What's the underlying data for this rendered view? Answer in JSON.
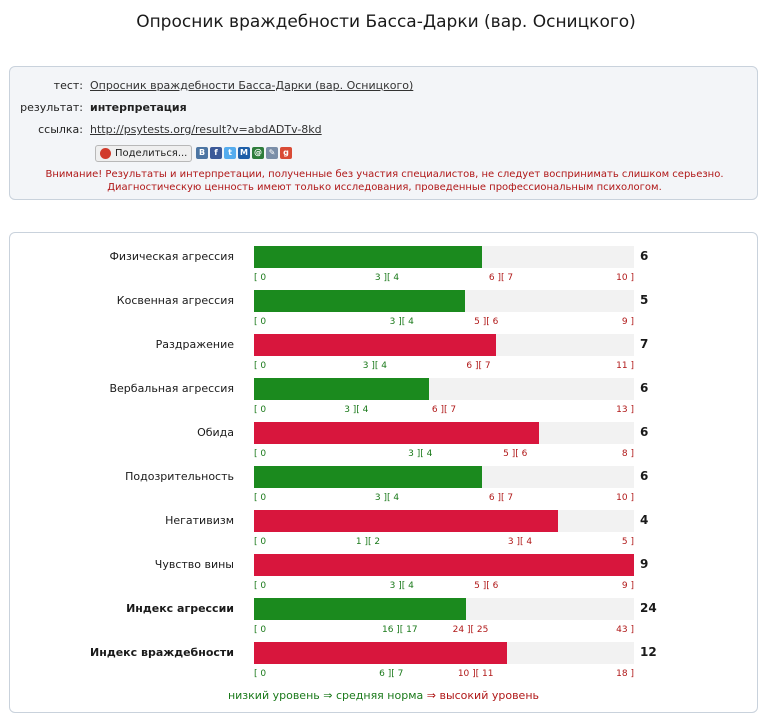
{
  "page": {
    "title": "Опросник враждебности Басса-Дарки (вар. Осницкого)"
  },
  "info": {
    "test_label": "тест:",
    "test_value": "Опросник враждебности Басса-Дарки (вар. Осницкого)",
    "result_label": "результат:",
    "result_value": "интерпретация",
    "link_label": "ссылка:",
    "link_value": "http://psytests.org/result?v=abdADTv-8kd",
    "share_label": "Поделиться...",
    "social": [
      {
        "name": "vk-icon",
        "glyph": "В",
        "color": "#4c75a3"
      },
      {
        "name": "facebook-icon",
        "glyph": "f",
        "color": "#3b5998"
      },
      {
        "name": "twitter-icon",
        "glyph": "t",
        "color": "#55acee"
      },
      {
        "name": "mailru-icon",
        "glyph": "M",
        "color": "#1f5fa8"
      },
      {
        "name": "odnoklassniki-icon",
        "glyph": "@",
        "color": "#2f7d3c"
      },
      {
        "name": "livejournal-icon",
        "glyph": "✎",
        "color": "#7a8ea8"
      },
      {
        "name": "googleplus-icon",
        "glyph": "g",
        "color": "#d94b36"
      }
    ],
    "warning_line1": "Внимание! Результаты и интерпретации, полученные без участия специалистов, не следует воспринимать слишком серьезно.",
    "warning_line2": "Диагностическую ценность имеют только исследования, проведенные профессиональным психологом."
  },
  "colors": {
    "low": "#1b8a1e",
    "norm": "#1b8a1e",
    "high": "#d8163d",
    "track": "#f2f2f2",
    "high_text": "#b01818",
    "low_text": "#1b7a1b"
  },
  "chart_data": {
    "type": "bar",
    "orientation": "horizontal",
    "scales": [
      {
        "label": "Физическая агрессия",
        "value": 6,
        "max": 10,
        "low": [
          0,
          3
        ],
        "norm": [
          4,
          6
        ],
        "high": [
          7,
          10
        ],
        "level": "norm",
        "bold": false
      },
      {
        "label": "Косвенная агрессия",
        "value": 5,
        "max": 9,
        "low": [
          0,
          3
        ],
        "norm": [
          4,
          5
        ],
        "high": [
          6,
          9
        ],
        "level": "norm",
        "bold": false
      },
      {
        "label": "Раздражение",
        "value": 7,
        "max": 11,
        "low": [
          0,
          3
        ],
        "norm": [
          4,
          6
        ],
        "high": [
          7,
          11
        ],
        "level": "high",
        "bold": false
      },
      {
        "label": "Вербальная агрессия",
        "value": 6,
        "max": 13,
        "low": [
          0,
          3
        ],
        "norm": [
          4,
          6
        ],
        "high": [
          7,
          13
        ],
        "level": "norm",
        "bold": false
      },
      {
        "label": "Обида",
        "value": 6,
        "max": 8,
        "low": [
          0,
          3
        ],
        "norm": [
          4,
          5
        ],
        "high": [
          6,
          8
        ],
        "level": "high",
        "bold": false
      },
      {
        "label": "Подозрительность",
        "value": 6,
        "max": 10,
        "low": [
          0,
          3
        ],
        "norm": [
          4,
          6
        ],
        "high": [
          7,
          10
        ],
        "level": "norm",
        "bold": false
      },
      {
        "label": "Негативизм",
        "value": 4,
        "max": 5,
        "low": [
          0,
          1
        ],
        "norm": [
          2,
          3
        ],
        "high": [
          4,
          5
        ],
        "level": "high",
        "bold": false
      },
      {
        "label": "Чувство вины",
        "value": 9,
        "max": 9,
        "low": [
          0,
          3
        ],
        "norm": [
          4,
          5
        ],
        "high": [
          6,
          9
        ],
        "level": "high",
        "bold": false
      },
      {
        "label": "Индекс агрессии",
        "value": 24,
        "max": 43,
        "low": [
          0,
          16
        ],
        "norm": [
          17,
          24
        ],
        "high": [
          25,
          43
        ],
        "level": "norm",
        "bold": true
      },
      {
        "label": "Индекс враждебности",
        "value": 12,
        "max": 18,
        "low": [
          0,
          6
        ],
        "norm": [
          7,
          10
        ],
        "high": [
          11,
          18
        ],
        "level": "high",
        "bold": true
      }
    ],
    "legend": {
      "low": "низкий уровень",
      "arrow": "⇒",
      "norm": "средняя норма",
      "high": "высокий уровень"
    }
  }
}
